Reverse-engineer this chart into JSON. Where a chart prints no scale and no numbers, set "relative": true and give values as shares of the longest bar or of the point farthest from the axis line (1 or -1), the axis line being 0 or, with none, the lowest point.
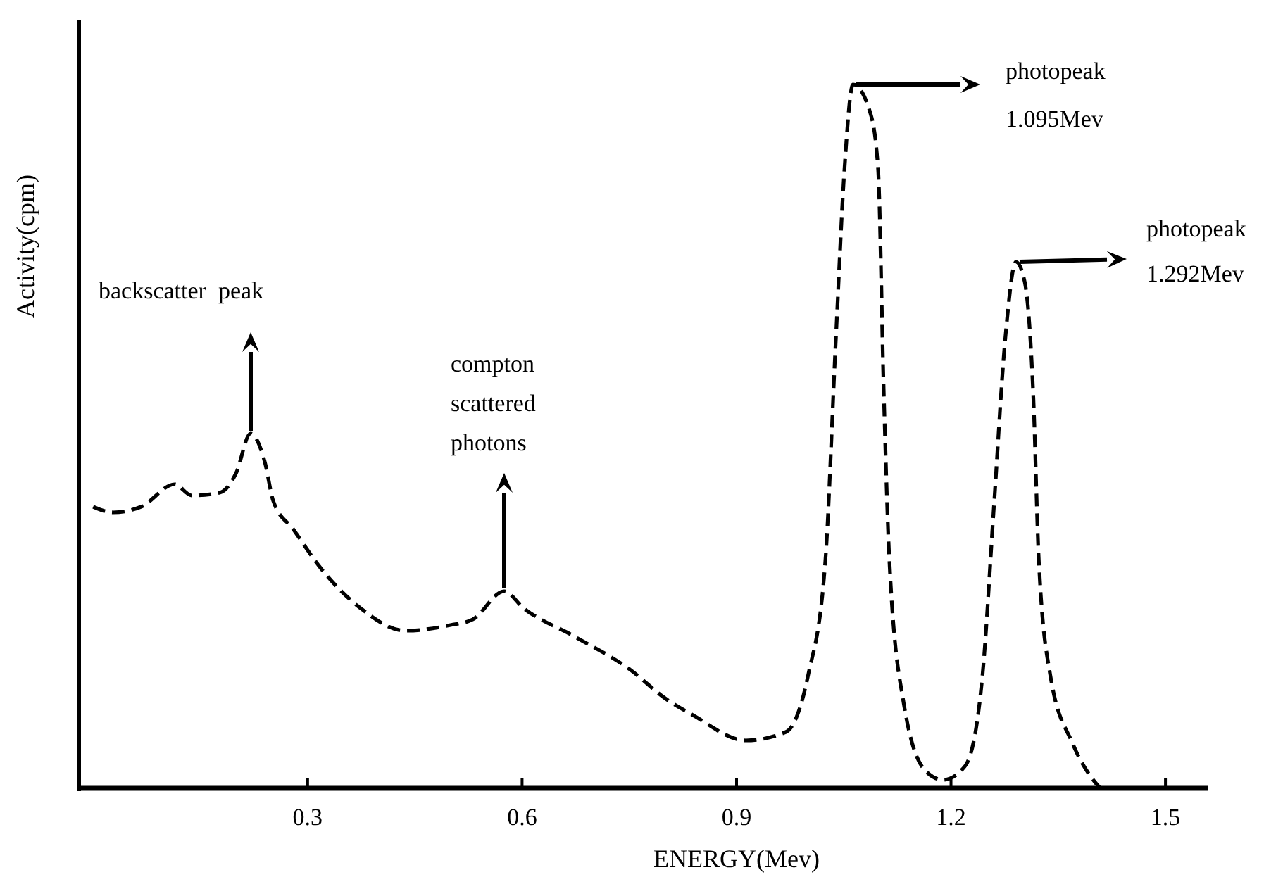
{
  "chart_data": {
    "type": "line",
    "xlabel": "ENERGY(Mev)",
    "ylabel": "Activity(cpm)",
    "relative": true,
    "line_style": "dashed",
    "marker": "none",
    "grid": false,
    "xlim": [
      -0.02,
      1.56
    ],
    "xticks": [
      0.3,
      0.6,
      0.9,
      1.2,
      1.5
    ],
    "series": [
      {
        "color": "#000000",
        "x": [
          0.0,
          0.028,
          0.067,
          0.114,
          0.138,
          0.177,
          0.2,
          0.22,
          0.24,
          0.252,
          0.28,
          0.319,
          0.374,
          0.437,
          0.5,
          0.531,
          0.575,
          0.602,
          0.673,
          0.752,
          0.8,
          0.839,
          0.913,
          0.969,
          1.0,
          1.024,
          1.039,
          1.051,
          1.063,
          1.087,
          1.098,
          1.106,
          1.114,
          1.134,
          1.165,
          1.189,
          1.22,
          1.244,
          1.26,
          1.276,
          1.291,
          1.303,
          1.315,
          1.323,
          1.339,
          1.37,
          1.402,
          1.409
        ],
        "values": [
          0.4,
          0.392,
          0.4,
          0.432,
          0.416,
          0.42,
          0.448,
          0.504,
          0.464,
          0.408,
          0.368,
          0.312,
          0.256,
          0.224,
          0.232,
          0.24,
          0.28,
          0.256,
          0.216,
          0.168,
          0.128,
          0.104,
          0.068,
          0.08,
          0.16,
          0.32,
          0.64,
          0.88,
          1.0,
          0.96,
          0.88,
          0.56,
          0.32,
          0.12,
          0.024,
          0.012,
          0.032,
          0.16,
          0.4,
          0.64,
          0.748,
          0.72,
          0.56,
          0.32,
          0.16,
          0.064,
          0.008,
          0.0
        ]
      }
    ],
    "annotations": [
      "backscatter  peak",
      "compton\nscattered\nphotons",
      "photopeak\n1.095Mev",
      "photopeak\n1.292Mev"
    ]
  }
}
